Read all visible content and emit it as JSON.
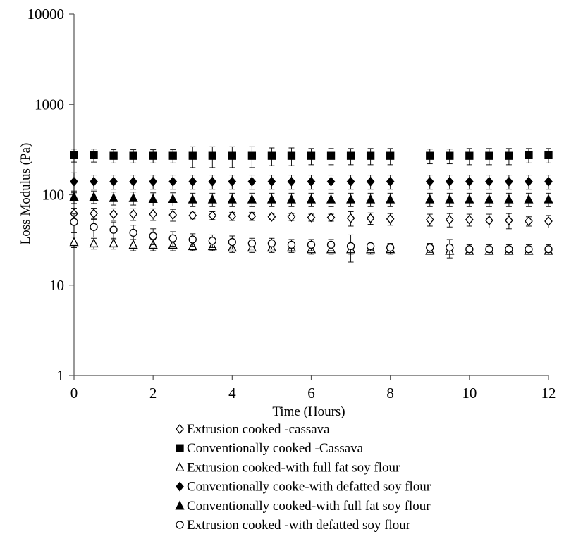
{
  "chart_data": {
    "type": "scatter",
    "xlabel": "Time (Hours)",
    "ylabel": "Loss Modulus (Pa)",
    "xlim": [
      0,
      12
    ],
    "ylim": [
      1,
      10000
    ],
    "y_scale": "log",
    "x_ticks": [
      "0",
      "2",
      "4",
      "6",
      "8",
      "10",
      "12"
    ],
    "y_ticks": [
      "1",
      "10",
      "100",
      "1000",
      "10000"
    ],
    "grid": false,
    "legend_position": "bottom",
    "x": [
      0,
      0.5,
      1,
      1.5,
      2,
      2.5,
      3,
      3.5,
      4,
      4.5,
      5,
      5.5,
      6,
      6.5,
      7,
      7.5,
      8,
      9,
      9.5,
      10,
      10.5,
      11,
      11.5,
      12
    ],
    "series": [
      {
        "name": "Extrusion cooked -cassava",
        "marker": "diamond-open",
        "values": [
          62,
          62,
          61,
          61,
          61,
          60,
          59,
          59,
          58,
          58,
          57,
          57,
          56,
          56,
          55,
          55,
          54,
          53,
          53,
          53,
          52,
          52,
          51,
          51
        ],
        "error": [
          9,
          9,
          9,
          9,
          9,
          9,
          5,
          6,
          6,
          6,
          4,
          5,
          5,
          5,
          10,
          8,
          8,
          8,
          9,
          8,
          9,
          10,
          6,
          8
        ]
      },
      {
        "name": "Conventionally cooked -Cassava",
        "marker": "square-filled",
        "values": [
          275,
          275,
          270,
          270,
          270,
          270,
          270,
          270,
          270,
          270,
          270,
          270,
          270,
          270,
          270,
          270,
          270,
          270,
          270,
          270,
          270,
          270,
          275,
          275
        ],
        "error": [
          45,
          45,
          45,
          45,
          45,
          45,
          70,
          70,
          70,
          70,
          60,
          60,
          55,
          55,
          55,
          55,
          55,
          50,
          50,
          55,
          55,
          55,
          50,
          50
        ]
      },
      {
        "name": "Extrusion cooked-with full fat soy flour",
        "marker": "triangle-open",
        "values": [
          30,
          29,
          29,
          28,
          28,
          28,
          27,
          27,
          26,
          26,
          26,
          26,
          25,
          25,
          25,
          25,
          25,
          24,
          24,
          24,
          24,
          24,
          24,
          24
        ],
        "error": [
          4,
          4,
          4,
          4,
          4,
          4,
          3,
          3,
          3,
          3,
          3,
          3,
          3,
          3,
          3,
          3,
          3,
          2,
          2,
          2,
          2,
          2,
          2,
          2
        ]
      },
      {
        "name": "Conventionally cooke-with defatted soy flour",
        "marker": "diamond-filled",
        "values": [
          140,
          140,
          140,
          140,
          140,
          140,
          140,
          140,
          140,
          140,
          140,
          140,
          140,
          140,
          140,
          140,
          140,
          140,
          140,
          140,
          140,
          140,
          140,
          140
        ],
        "error": [
          35,
          25,
          25,
          25,
          25,
          25,
          25,
          25,
          25,
          25,
          25,
          25,
          25,
          25,
          25,
          25,
          25,
          25,
          25,
          25,
          25,
          25,
          25,
          25
        ]
      },
      {
        "name": "Conventionally cooked-with full fat soy flour",
        "marker": "triangle-filled",
        "values": [
          95,
          95,
          92,
          92,
          90,
          90,
          89,
          89,
          89,
          89,
          89,
          89,
          89,
          89,
          89,
          89,
          89,
          89,
          89,
          89,
          89,
          89,
          89,
          89
        ],
        "error": [
          15,
          15,
          15,
          15,
          15,
          15,
          15,
          15,
          15,
          15,
          15,
          15,
          15,
          15,
          15,
          15,
          15,
          15,
          15,
          15,
          15,
          15,
          15,
          15
        ]
      },
      {
        "name": "Extrusion cooked -with defatted soy flour",
        "marker": "circle-open",
        "values": [
          50,
          44,
          41,
          38,
          35,
          33,
          32,
          31,
          30,
          29,
          29,
          28,
          28,
          28,
          27,
          27,
          26,
          26,
          26,
          25,
          25,
          25,
          25,
          25
        ],
        "error": [
          12,
          10,
          9,
          8,
          7,
          6,
          5,
          5,
          5,
          4,
          4,
          4,
          4,
          4,
          9,
          3,
          3,
          3,
          6,
          3,
          3,
          3,
          3,
          3
        ]
      }
    ]
  }
}
